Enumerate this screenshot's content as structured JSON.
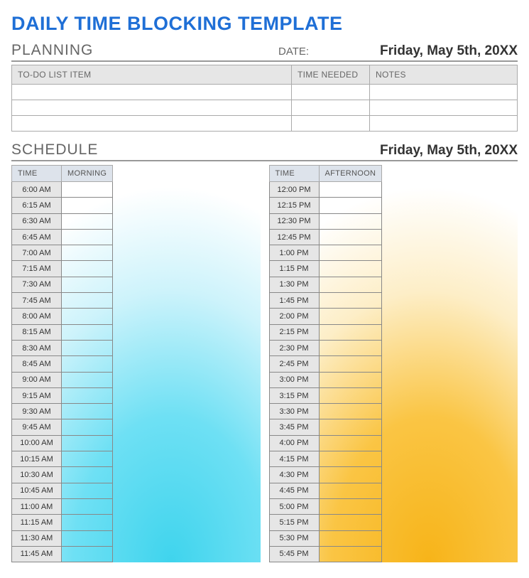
{
  "title": "DAILY TIME BLOCKING TEMPLATE",
  "planning": {
    "label": "PLANNING",
    "date_label": "DATE:",
    "date_value": "Friday, May 5th, 20XX",
    "columns": [
      "TO-DO LIST ITEM",
      "TIME NEEDED",
      "NOTES"
    ],
    "rows": [
      [
        "",
        "",
        ""
      ],
      [
        "",
        "",
        ""
      ],
      [
        "",
        "",
        ""
      ]
    ]
  },
  "schedule": {
    "label": "SCHEDULE",
    "date_value": "Friday, May 5th, 20XX",
    "morning": {
      "time_header": "TIME",
      "block_header": "MORNING",
      "gradient_color_center": "#3fd4ed",
      "gradient_color_edge": "#ffffff",
      "slots": [
        {
          "time": "6:00 AM",
          "text": ""
        },
        {
          "time": "6:15 AM",
          "text": ""
        },
        {
          "time": "6:30 AM",
          "text": ""
        },
        {
          "time": "6:45 AM",
          "text": ""
        },
        {
          "time": "7:00 AM",
          "text": ""
        },
        {
          "time": "7:15 AM",
          "text": ""
        },
        {
          "time": "7:30 AM",
          "text": ""
        },
        {
          "time": "7:45 AM",
          "text": ""
        },
        {
          "time": "8:00 AM",
          "text": ""
        },
        {
          "time": "8:15 AM",
          "text": ""
        },
        {
          "time": "8:30 AM",
          "text": ""
        },
        {
          "time": "8:45 AM",
          "text": ""
        },
        {
          "time": "9:00 AM",
          "text": ""
        },
        {
          "time": "9:15 AM",
          "text": ""
        },
        {
          "time": "9:30 AM",
          "text": ""
        },
        {
          "time": "9:45 AM",
          "text": ""
        },
        {
          "time": "10:00 AM",
          "text": ""
        },
        {
          "time": "10:15 AM",
          "text": ""
        },
        {
          "time": "10:30 AM",
          "text": ""
        },
        {
          "time": "10:45 AM",
          "text": ""
        },
        {
          "time": "11:00 AM",
          "text": ""
        },
        {
          "time": "11:15 AM",
          "text": ""
        },
        {
          "time": "11:30 AM",
          "text": ""
        },
        {
          "time": "11:45 AM",
          "text": ""
        }
      ]
    },
    "afternoon": {
      "time_header": "TIME",
      "block_header": "AFTERNOON",
      "gradient_color_center": "#f7b419",
      "gradient_color_edge": "#ffffff",
      "slots": [
        {
          "time": "12:00 PM",
          "text": ""
        },
        {
          "time": "12:15 PM",
          "text": ""
        },
        {
          "time": "12:30 PM",
          "text": ""
        },
        {
          "time": "12:45 PM",
          "text": ""
        },
        {
          "time": "1:00 PM",
          "text": ""
        },
        {
          "time": "1:15 PM",
          "text": ""
        },
        {
          "time": "1:30 PM",
          "text": ""
        },
        {
          "time": "1:45 PM",
          "text": ""
        },
        {
          "time": "2:00 PM",
          "text": ""
        },
        {
          "time": "2:15 PM",
          "text": ""
        },
        {
          "time": "2:30 PM",
          "text": ""
        },
        {
          "time": "2:45 PM",
          "text": ""
        },
        {
          "time": "3:00 PM",
          "text": ""
        },
        {
          "time": "3:15 PM",
          "text": ""
        },
        {
          "time": "3:30 PM",
          "text": ""
        },
        {
          "time": "3:45 PM",
          "text": ""
        },
        {
          "time": "4:00 PM",
          "text": ""
        },
        {
          "time": "4:15 PM",
          "text": ""
        },
        {
          "time": "4:30 PM",
          "text": ""
        },
        {
          "time": "4:45 PM",
          "text": ""
        },
        {
          "time": "5:00 PM",
          "text": ""
        },
        {
          "time": "5:15 PM",
          "text": ""
        },
        {
          "time": "5:30 PM",
          "text": ""
        },
        {
          "time": "5:45 PM",
          "text": ""
        }
      ]
    }
  },
  "styling": {
    "title_color": "#1f6fd6",
    "header_bg": "#e6e6e6",
    "block_header_bg": "#dde3eb",
    "border_color": "#aaaaaa",
    "time_cell_bg": "#e6e6e6"
  }
}
